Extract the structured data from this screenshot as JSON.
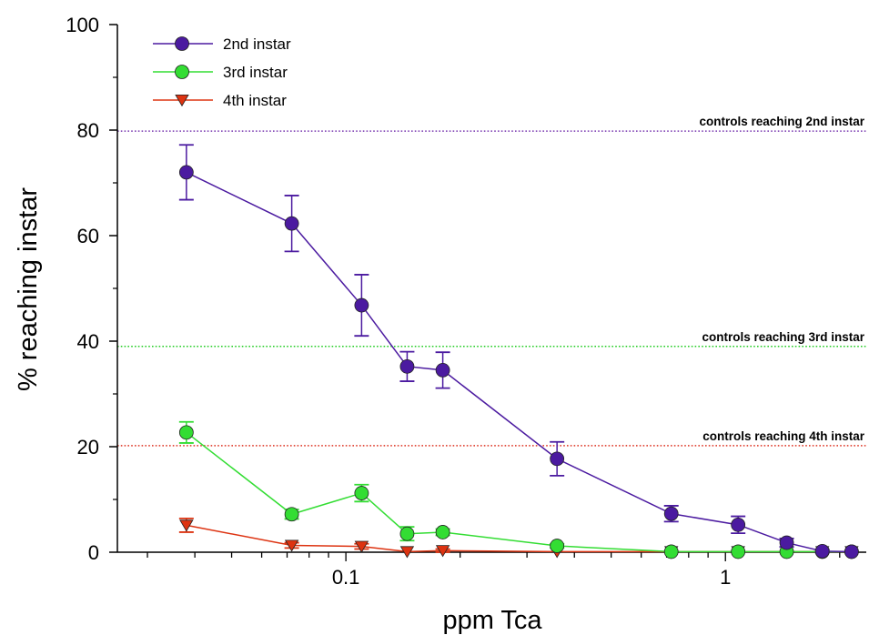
{
  "chart_data": {
    "type": "line",
    "xlabel": "ppm Tca",
    "ylabel": "% reaching instar",
    "xscale": "log",
    "xlim": [
      0.025,
      2.35
    ],
    "ylim": [
      0,
      100
    ],
    "x_tick_labels": [
      {
        "value": 0.1,
        "label": "0.1"
      },
      {
        "value": 1,
        "label": "1"
      }
    ],
    "y_ticks": [
      0,
      20,
      40,
      60,
      80,
      100
    ],
    "x": [
      0.038,
      0.072,
      0.11,
      0.145,
      0.18,
      0.36,
      0.72,
      1.08,
      1.45,
      1.8,
      2.15
    ],
    "series": [
      {
        "name": "2nd instar",
        "color": "#4b1aa0",
        "marker": "circle",
        "values": [
          72,
          62.3,
          46.8,
          35.2,
          34.5,
          17.7,
          7.3,
          5.2,
          1.8,
          0.2,
          0.1
        ],
        "errors": [
          5.2,
          5.3,
          5.8,
          2.8,
          3.4,
          3.2,
          1.5,
          1.6,
          0.8,
          0.3,
          0.2
        ]
      },
      {
        "name": "3rd instar",
        "color": "#33dd33",
        "marker": "circle",
        "values": [
          22.7,
          7.2,
          11.2,
          3.5,
          3.8,
          1.2,
          0.1,
          0.1,
          0.1,
          0.1,
          0.1
        ],
        "errors": [
          2.0,
          0.9,
          1.6,
          1.3,
          0.6,
          0.4,
          0.1,
          0.1,
          0.1,
          0.1,
          0.1
        ]
      },
      {
        "name": "4th instar",
        "color": "#dd3311",
        "marker": "triangle-down",
        "values": [
          5.1,
          1.3,
          1.1,
          0.1,
          0.3,
          0.1,
          0.1,
          0.1,
          0.1,
          0.1,
          0.1
        ],
        "errors": [
          1.3,
          0.5,
          0.5,
          0.2,
          0.3,
          0.1,
          0.1,
          0.1,
          0.1,
          0.1,
          0.1
        ]
      }
    ],
    "reference_lines": [
      {
        "y": 79.8,
        "label": "controls reaching 2nd instar",
        "color": "#7a3ab0"
      },
      {
        "y": 39.0,
        "label": "controls reaching 3rd instar",
        "color": "#22cc22"
      },
      {
        "y": 20.2,
        "label": "controls reaching 4th instar",
        "color": "#dd3322"
      }
    ],
    "legend": {
      "placement": "top-left"
    },
    "grid": false
  }
}
